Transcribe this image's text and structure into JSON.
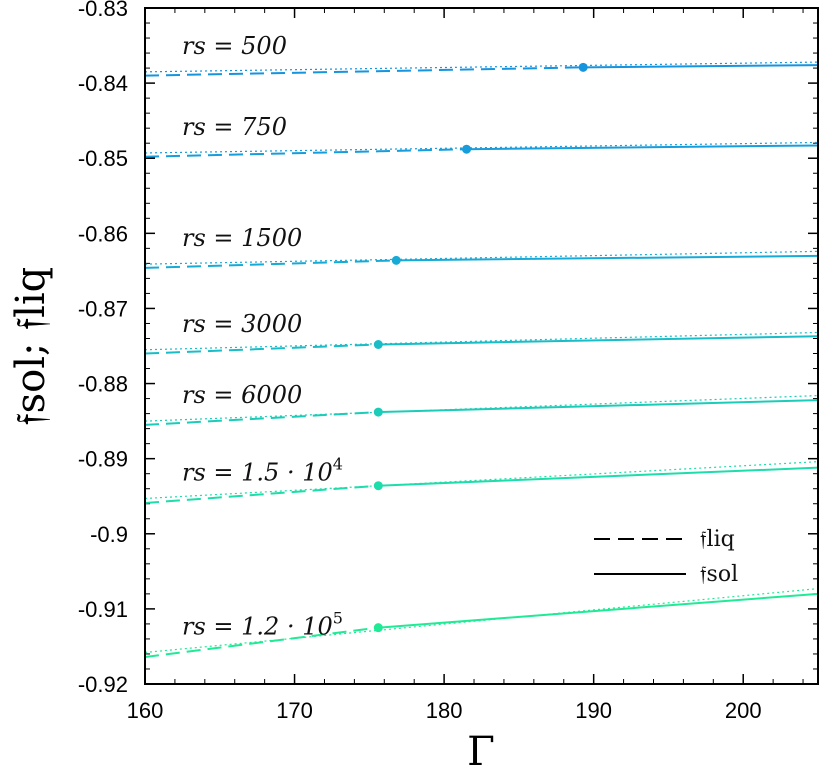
{
  "chart_data": {
    "type": "line",
    "xlabel": "Γ",
    "ylabel": "𝔣sol;  𝔣liq",
    "xlim": [
      160,
      205
    ],
    "ylim": [
      -0.92,
      -0.83
    ],
    "xticks": [
      160,
      170,
      180,
      190,
      200
    ],
    "yticks": [
      -0.92,
      -0.91,
      -0.9,
      -0.89,
      -0.88,
      -0.87,
      -0.86,
      -0.85,
      -0.84,
      -0.83
    ],
    "xtick_labels": [
      "160",
      "170",
      "180",
      "190",
      "200"
    ],
    "ytick_labels": [
      "-0.92",
      "-0.91",
      "-0.9",
      "-0.89",
      "-0.88",
      "-0.87",
      "-0.86",
      "-0.85",
      "-0.84",
      "-0.83"
    ],
    "legend": {
      "position": "lower-right",
      "entries": [
        {
          "label": "𝔣liq",
          "style": "dashed"
        },
        {
          "label": "𝔣sol",
          "style": "solid"
        }
      ]
    },
    "series": [
      {
        "name": "rs = 500",
        "label_main": "rs = 500",
        "label_sup": "",
        "color": "#1694de",
        "liq": {
          "x": [
            160,
            189.3
          ],
          "y": [
            -0.839,
            -0.8379
          ]
        },
        "sol": {
          "x": [
            189.3,
            205
          ],
          "y": [
            -0.8379,
            -0.8376
          ]
        },
        "dotted": {
          "x": [
            160,
            205
          ],
          "y": [
            -0.8385,
            -0.8372
          ]
        },
        "crossing": {
          "x": 189.3,
          "y": -0.8379
        }
      },
      {
        "name": "rs = 750",
        "label_main": "rs = 750",
        "label_sup": "",
        "color": "#179ddb",
        "liq": {
          "x": [
            160,
            181.5
          ],
          "y": [
            -0.8498,
            -0.8488
          ]
        },
        "sol": {
          "x": [
            181.5,
            205
          ],
          "y": [
            -0.8488,
            -0.8483
          ]
        },
        "dotted": {
          "x": [
            160,
            205
          ],
          "y": [
            -0.8493,
            -0.8479
          ]
        },
        "crossing": {
          "x": 181.5,
          "y": -0.8488
        }
      },
      {
        "name": "rs = 1500",
        "label_main": "rs = 1500",
        "label_sup": "",
        "color": "#18aad6",
        "liq": {
          "x": [
            160,
            176.8
          ],
          "y": [
            -0.8646,
            -0.8636
          ]
        },
        "sol": {
          "x": [
            176.8,
            205
          ],
          "y": [
            -0.8636,
            -0.863
          ]
        },
        "dotted": {
          "x": [
            160,
            205
          ],
          "y": [
            -0.8641,
            -0.8624
          ]
        },
        "crossing": {
          "x": 176.8,
          "y": -0.8636
        }
      },
      {
        "name": "rs = 3000",
        "label_main": "rs = 3000",
        "label_sup": "",
        "color": "#19bdc8",
        "liq": {
          "x": [
            160,
            175.6
          ],
          "y": [
            -0.876,
            -0.8748
          ]
        },
        "sol": {
          "x": [
            175.6,
            205
          ],
          "y": [
            -0.8748,
            -0.8737
          ]
        },
        "dotted": {
          "x": [
            160,
            205
          ],
          "y": [
            -0.8755,
            -0.8732
          ]
        },
        "crossing": {
          "x": 175.6,
          "y": -0.8748
        }
      },
      {
        "name": "rs = 6000",
        "label_main": "rs = 6000",
        "label_sup": "",
        "color": "#1bcdb8",
        "liq": {
          "x": [
            160,
            175.6
          ],
          "y": [
            -0.8855,
            -0.8838
          ]
        },
        "sol": {
          "x": [
            175.6,
            205
          ],
          "y": [
            -0.8838,
            -0.8822
          ]
        },
        "dotted": {
          "x": [
            160,
            205
          ],
          "y": [
            -0.885,
            -0.8816
          ]
        },
        "crossing": {
          "x": 175.6,
          "y": -0.8838
        }
      },
      {
        "name": "rs = 1.5·10^4",
        "label_main": "rs = 1.5 · 10",
        "label_sup": "4",
        "color": "#1dddaa",
        "liq": {
          "x": [
            160,
            175.6
          ],
          "y": [
            -0.8959,
            -0.8936
          ]
        },
        "sol": {
          "x": [
            175.6,
            205
          ],
          "y": [
            -0.8936,
            -0.8912
          ]
        },
        "dotted": {
          "x": [
            160,
            205
          ],
          "y": [
            -0.8953,
            -0.8904
          ]
        },
        "crossing": {
          "x": 175.6,
          "y": -0.8936
        }
      },
      {
        "name": "rs = 1.2·10^5",
        "label_main": "rs = 1.2 · 10",
        "label_sup": "5",
        "color": "#20ea96",
        "liq": {
          "x": [
            160,
            175.6
          ],
          "y": [
            -0.9164,
            -0.9125
          ]
        },
        "sol": {
          "x": [
            175.6,
            205
          ],
          "y": [
            -0.9125,
            -0.908
          ]
        },
        "dotted": {
          "x": [
            160,
            205
          ],
          "y": [
            -0.9158,
            -0.9073
          ]
        },
        "crossing": {
          "x": 175.6,
          "y": -0.9125
        }
      }
    ]
  }
}
